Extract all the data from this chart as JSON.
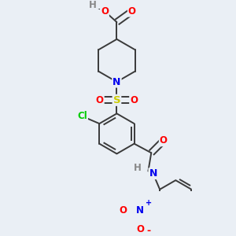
{
  "background_color": "#eaeff5",
  "bond_color": "#3a3a3a",
  "atom_colors": {
    "O": "#ff0000",
    "N": "#0000ee",
    "S": "#cccc00",
    "Cl": "#00cc00",
    "H": "#888888",
    "C": "#3a3a3a"
  },
  "figsize": [
    3.0,
    3.0
  ],
  "dpi": 100
}
